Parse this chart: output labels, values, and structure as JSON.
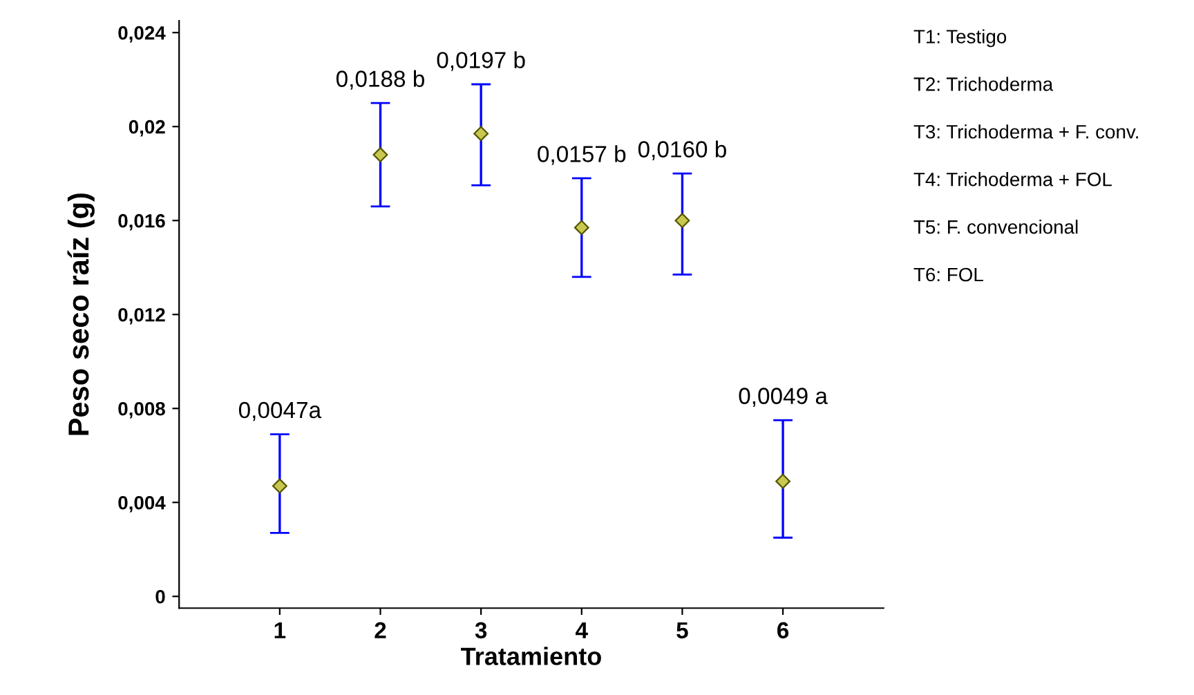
{
  "chart_data": {
    "type": "scatter",
    "xlabel": "Tratamiento",
    "ylabel": "Peso seco raíz (g)",
    "categories": [
      "1",
      "2",
      "3",
      "4",
      "5",
      "6"
    ],
    "series": [
      {
        "color": "#c8c850",
        "values": [
          0.0047,
          0.0188,
          0.0197,
          0.0157,
          0.016,
          0.0049
        ],
        "errors": [
          [
            0.0027,
            0.0069
          ],
          [
            0.0166,
            0.021
          ],
          [
            0.0175,
            0.0218
          ],
          [
            0.0136,
            0.0178
          ],
          [
            0.0137,
            0.018
          ],
          [
            0.0025,
            0.0075
          ]
        ],
        "value_labels": [
          "0,0047a",
          "0,0188 b",
          "0,0197 b",
          "0,0157 b",
          "0,0160 b",
          "0,0049 a"
        ]
      }
    ],
    "ylim": [
      -0.0005,
      0.0245
    ],
    "yticks": [
      {
        "value": 0,
        "label": "0"
      },
      {
        "value": 0.004,
        "label": "0,004"
      },
      {
        "value": 0.008,
        "label": "0,008"
      },
      {
        "value": 0.012,
        "label": "0,012"
      },
      {
        "value": 0.016,
        "label": "0,016"
      },
      {
        "value": 0.02,
        "label": "0,02"
      },
      {
        "value": 0.024,
        "label": "0,024"
      }
    ],
    "marker": "diamond",
    "grid": false,
    "annotations": [
      "T1: Testigo",
      "T2: Trichoderma",
      "T3: Trichoderma + F. conv.",
      "T4: Trichoderma + FOL",
      "T5: F. convencional",
      "T6: FOL"
    ]
  }
}
